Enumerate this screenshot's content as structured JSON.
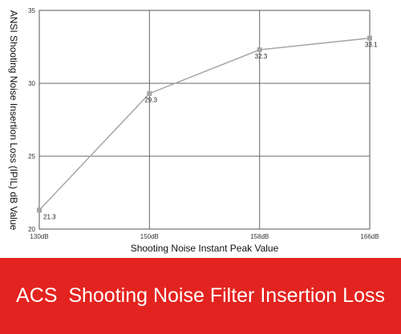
{
  "banner": {
    "background": "#e3231f"
  },
  "chart_data": {
    "type": "line",
    "title": "ACS  Shooting Noise Filter Insertion Loss",
    "xlabel": "Shooting Noise Instant Peak Value",
    "ylabel": "ANSI Shooting Noise Insertion Loss (IPIL) dB Value",
    "categories": [
      "130dB",
      "150dB",
      "158dB",
      "166dB"
    ],
    "series": [
      {
        "values": [
          21.3,
          29.3,
          32.3,
          33.1
        ],
        "labels": [
          "21.3",
          "29.3",
          "32.3",
          "33.1"
        ],
        "color": "#a6a6a6"
      }
    ],
    "ylim": [
      20,
      35
    ],
    "yticks": [
      20,
      25,
      30,
      35
    ],
    "grid": true
  }
}
